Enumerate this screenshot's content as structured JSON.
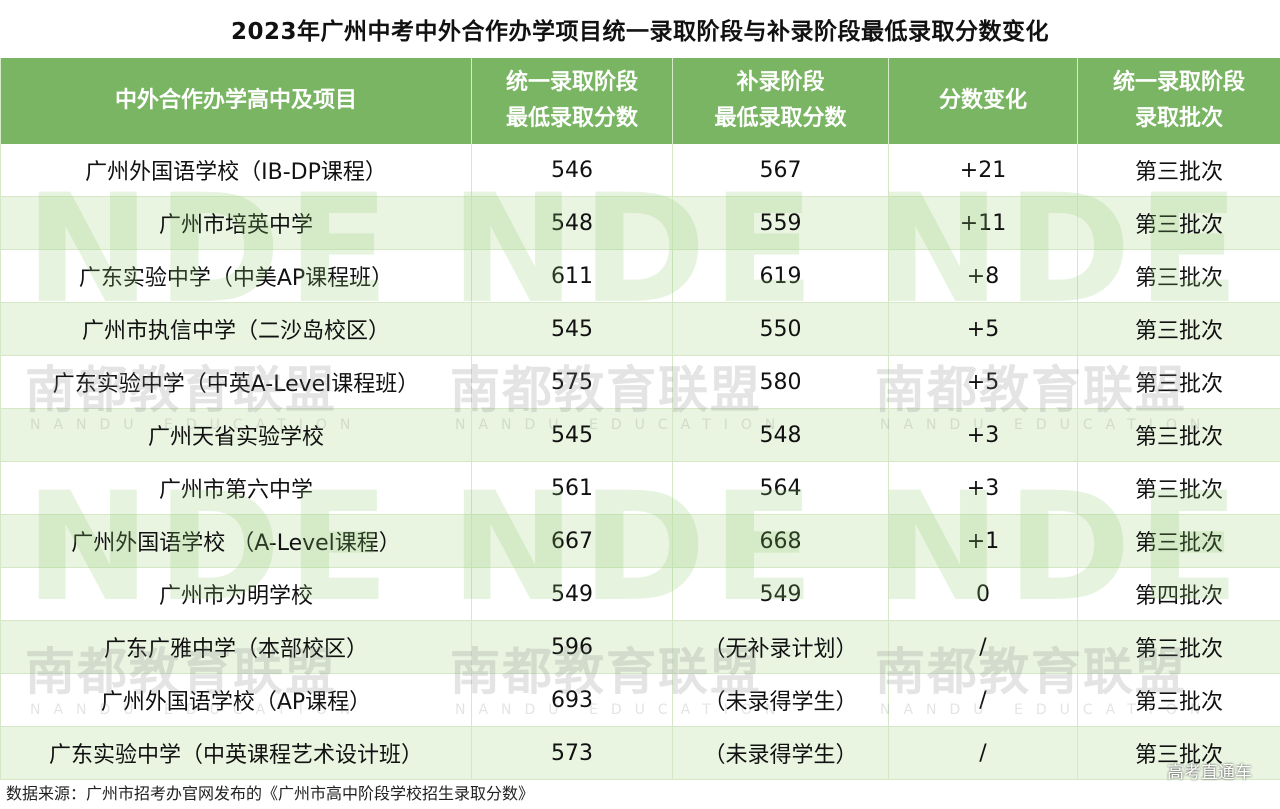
{
  "title": "2023年广州中考中外合作办学项目统一录取阶段与补录阶段最低录取分数变化",
  "headers": {
    "project": "中外合作办学高中及项目",
    "unified_score_line1": "统一录取阶段",
    "unified_score_line2": "最低录取分数",
    "supplement_score_line1": "补录阶段",
    "supplement_score_line2": "最低录取分数",
    "change": "分数变化",
    "batch_line1": "统一录取阶段",
    "batch_line2": "录取批次"
  },
  "rows": [
    {
      "project": "广州外国语学校（IB-DP课程）",
      "unified": "546",
      "supplement": "567",
      "change": "+21",
      "batch": "第三批次"
    },
    {
      "project": "广州市培英中学",
      "unified": "548",
      "supplement": "559",
      "change": "+11",
      "batch": "第三批次"
    },
    {
      "project": "广东实验中学（中美AP课程班）",
      "unified": "611",
      "supplement": "619",
      "change": "+8",
      "batch": "第三批次"
    },
    {
      "project": "广州市执信中学（二沙岛校区）",
      "unified": "545",
      "supplement": "550",
      "change": "+5",
      "batch": "第三批次"
    },
    {
      "project": "广东实验中学（中英A-Level课程班）",
      "unified": "575",
      "supplement": "580",
      "change": "+5",
      "batch": "第三批次"
    },
    {
      "project": "广州天省实验学校",
      "unified": "545",
      "supplement": "548",
      "change": "+3",
      "batch": "第三批次"
    },
    {
      "project": "广州市第六中学",
      "unified": "561",
      "supplement": "564",
      "change": "+3",
      "batch": "第三批次"
    },
    {
      "project": "广州外国语学校 （A-Level课程）",
      "unified": "667",
      "supplement": "668",
      "change": "+1",
      "batch": "第三批次"
    },
    {
      "project": "广州市为明学校",
      "unified": "549",
      "supplement": "549",
      "change": "0",
      "batch": "第四批次"
    },
    {
      "project": "广东广雅中学（本部校区）",
      "unified": "596",
      "supplement": "（无补录计划）",
      "change": "/",
      "batch": "第三批次"
    },
    {
      "project": "广州外国语学校（AP课程）",
      "unified": "693",
      "supplement": "（未录得学生）",
      "change": "/",
      "batch": "第三批次"
    },
    {
      "project": "广东实验中学（中英课程艺术设计班）",
      "unified": "573",
      "supplement": "（未录得学生）",
      "change": "/",
      "batch": "第三批次"
    }
  ],
  "source": "数据来源：广州市招考办官网发布的《广州市高中阶段学校招生录取分数》",
  "brand": "高考直通车",
  "watermark": {
    "logo": "NDE",
    "cn": "南都教育联盟",
    "en": "NANDU EDUCATION"
  },
  "colors": {
    "header_bg": "#7ab563",
    "stripe_bg": "#e9f4e1"
  }
}
